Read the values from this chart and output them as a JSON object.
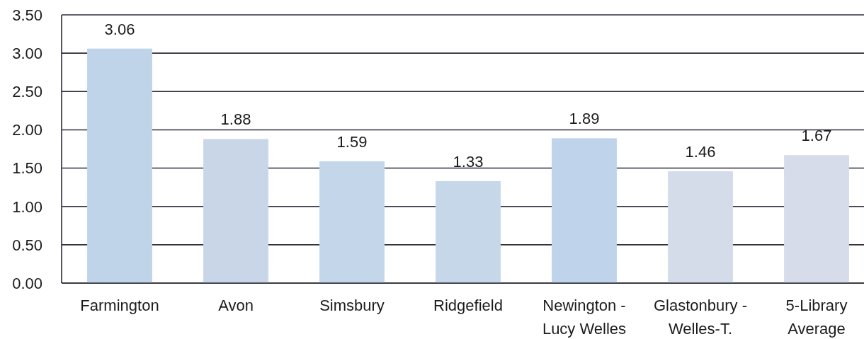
{
  "chart_data": {
    "type": "bar",
    "categories": [
      "Farmington",
      "Avon",
      "Simsbury",
      "Ridgefield",
      "Newington - Lucy Welles",
      "Glastonbury - Welles-T.",
      "5-Library Average"
    ],
    "values": [
      3.06,
      1.88,
      1.59,
      1.33,
      1.89,
      1.46,
      1.67
    ],
    "colors": [
      "#c0d4e9",
      "#c8d6e8",
      "#c3d6ea",
      "#c7d7ea",
      "#bfd4eb",
      "#d4dcea",
      "#d6dce9"
    ],
    "ylim": [
      0,
      3.5
    ],
    "yticks": [
      {
        "value": 0,
        "label": "0.00"
      },
      {
        "value": 0.5,
        "label": "0.50"
      },
      {
        "value": 1,
        "label": "1.00"
      },
      {
        "value": 1.5,
        "label": "1.50"
      },
      {
        "value": 2,
        "label": "2.00"
      },
      {
        "value": 2.5,
        "label": "2.50"
      },
      {
        "value": 3,
        "label": "3.00"
      },
      {
        "value": 3.5,
        "label": "3.50"
      }
    ],
    "grid": "y",
    "data_labels": true
  }
}
